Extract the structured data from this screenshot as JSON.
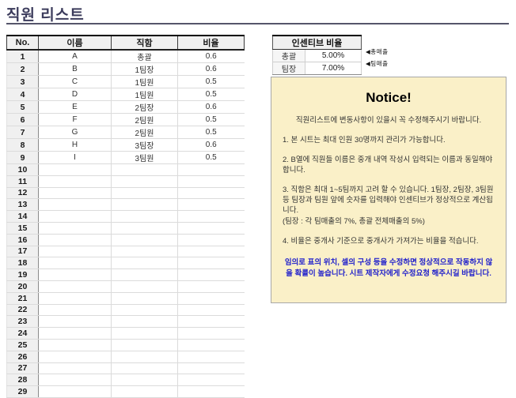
{
  "page_title": "직원 리스트",
  "employee_table": {
    "headers": [
      "No.",
      "이름",
      "직함",
      "비율"
    ],
    "rows": [
      [
        "1",
        "A",
        "총괄",
        "0.6"
      ],
      [
        "2",
        "B",
        "1팀장",
        "0.6"
      ],
      [
        "3",
        "C",
        "1팀원",
        "0.5"
      ],
      [
        "4",
        "D",
        "1팀원",
        "0.5"
      ],
      [
        "5",
        "E",
        "2팀장",
        "0.6"
      ],
      [
        "6",
        "F",
        "2팀원",
        "0.5"
      ],
      [
        "7",
        "G",
        "2팀원",
        "0.5"
      ],
      [
        "8",
        "H",
        "3팀장",
        "0.6"
      ],
      [
        "9",
        "I",
        "3팀원",
        "0.5"
      ],
      [
        "10",
        "",
        "",
        ""
      ],
      [
        "11",
        "",
        "",
        ""
      ],
      [
        "12",
        "",
        "",
        ""
      ],
      [
        "13",
        "",
        "",
        ""
      ],
      [
        "14",
        "",
        "",
        ""
      ],
      [
        "15",
        "",
        "",
        ""
      ],
      [
        "16",
        "",
        "",
        ""
      ],
      [
        "17",
        "",
        "",
        ""
      ],
      [
        "18",
        "",
        "",
        ""
      ],
      [
        "19",
        "",
        "",
        ""
      ],
      [
        "20",
        "",
        "",
        ""
      ],
      [
        "21",
        "",
        "",
        ""
      ],
      [
        "22",
        "",
        "",
        ""
      ],
      [
        "23",
        "",
        "",
        ""
      ],
      [
        "24",
        "",
        "",
        ""
      ],
      [
        "25",
        "",
        "",
        ""
      ],
      [
        "26",
        "",
        "",
        ""
      ],
      [
        "27",
        "",
        "",
        ""
      ],
      [
        "28",
        "",
        "",
        ""
      ],
      [
        "29",
        "",
        "",
        ""
      ]
    ]
  },
  "incentive_table": {
    "title": "인센티브 비율",
    "rows": [
      {
        "label": "총괄",
        "value": "5.00%",
        "annotation": "◀총매출"
      },
      {
        "label": "팀장",
        "value": "7.00%",
        "annotation": "◀팀매출"
      }
    ]
  },
  "notice": {
    "title": "Notice!",
    "intro": "직원리스트에 변동사항이 있을시 꼭 수정해주시기 바랍니다.",
    "items": [
      {
        "text": "1. 본 시트는 최대 인원 30명까지 관리가 가능합니다.",
        "gap": true
      },
      {
        "text": "2. B열에 직원들 이름은 중개 내역 작성시 입력되는 이름과 동일해야합니다.",
        "gap": true
      },
      {
        "text": "3. 직함은 최대 1~5팀까지 고려 할 수 있습니다. 1팀장, 2팀장, 3팀원 등 팀장과 팀원 앞에 숫자를 입력해야 인센티브가 정상적으로 계산됩니다.",
        "gap": false
      },
      {
        "text": "(팀장 : 각 팀매출의 7%, 총괄 전체매출의 5%)",
        "gap": true
      },
      {
        "text": "4. 비율은 중개사 기준으로 중개사가 가져가는 비율을 적습니다.",
        "gap": true
      }
    ],
    "warning": "임의로 표의 위치, 셀의 구성 등을 수정하면 정상적으로 작동하지 않을 확률이 높습니다. 시트 제작자에게 수정요청 해주시길 바랍니다."
  },
  "colors": {
    "title_text": "#3C3C5C",
    "table_header_bg": "#F0F0F0",
    "notice_bg": "#FAF0C8",
    "notice_border": "#A8A8A8",
    "warning_text": "#2323CB"
  }
}
